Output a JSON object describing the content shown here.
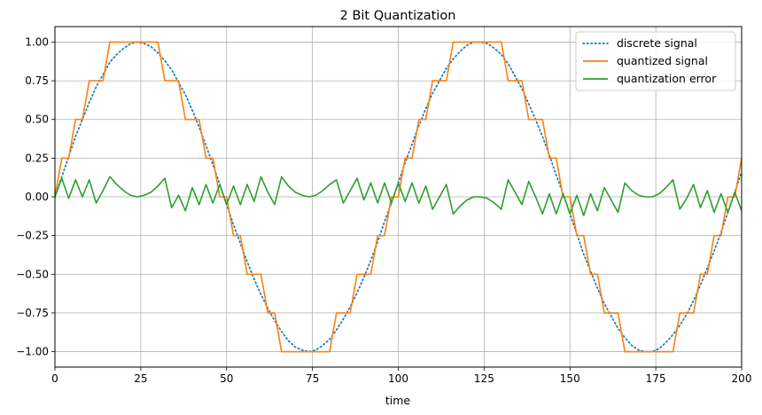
{
  "chart_data": {
    "type": "line",
    "title": "2 Bit Quantization",
    "xlabel": "time",
    "ylabel": "",
    "xlim": [
      0,
      200
    ],
    "ylim": [
      -1.1,
      1.1
    ],
    "xticks": [
      0,
      25,
      50,
      75,
      100,
      125,
      150,
      175,
      200
    ],
    "xtick_labels": [
      "0",
      "25",
      "50",
      "75",
      "100",
      "125",
      "150",
      "175",
      "200"
    ],
    "yticks": [
      -1.0,
      -0.75,
      -0.5,
      -0.25,
      0.0,
      0.25,
      0.5,
      0.75,
      1.0
    ],
    "ytick_labels": [
      "−1.00",
      "−0.75",
      "−0.50",
      "−0.25",
      "0.00",
      "0.25",
      "0.50",
      "0.75",
      "1.00"
    ],
    "grid": true,
    "legend_position": "top-right",
    "x": [
      0,
      2,
      4,
      6,
      8,
      10,
      12,
      14,
      16,
      18,
      20,
      22,
      24,
      26,
      28,
      30,
      32,
      34,
      36,
      38,
      40,
      42,
      44,
      46,
      48,
      50,
      52,
      54,
      56,
      58,
      60,
      62,
      64,
      66,
      68,
      70,
      72,
      74,
      76,
      78,
      80,
      82,
      84,
      86,
      88,
      90,
      92,
      94,
      96,
      98,
      100,
      102,
      104,
      106,
      108,
      110,
      112,
      114,
      116,
      118,
      120,
      122,
      124,
      126,
      128,
      130,
      132,
      134,
      136,
      138,
      140,
      142,
      144,
      146,
      148,
      150,
      152,
      154,
      156,
      158,
      160,
      162,
      164,
      166,
      168,
      170,
      172,
      174,
      176,
      178,
      180,
      182,
      184,
      186,
      188,
      190,
      192,
      194,
      196,
      198,
      200
    ],
    "series": [
      {
        "name": "discrete signal",
        "color": "#1f77b4",
        "style": "dotted",
        "values": [
          0.0,
          0.13,
          0.26,
          0.39,
          0.5,
          0.61,
          0.71,
          0.79,
          0.87,
          0.92,
          0.96,
          0.99,
          1.0,
          0.99,
          0.97,
          0.93,
          0.88,
          0.82,
          0.74,
          0.66,
          0.56,
          0.45,
          0.33,
          0.21,
          0.08,
          -0.05,
          -0.18,
          -0.3,
          -0.42,
          -0.53,
          -0.63,
          -0.72,
          -0.8,
          -0.87,
          -0.93,
          -0.97,
          -0.99,
          -1.0,
          -0.99,
          -0.96,
          -0.92,
          -0.86,
          -0.79,
          -0.71,
          -0.62,
          -0.52,
          -0.41,
          -0.29,
          -0.16,
          -0.04,
          0.09,
          0.22,
          0.34,
          0.46,
          0.57,
          0.67,
          0.75,
          0.83,
          0.89,
          0.94,
          0.98,
          1.0,
          1.0,
          0.99,
          0.96,
          0.92,
          0.86,
          0.78,
          0.7,
          0.6,
          0.5,
          0.39,
          0.27,
          0.14,
          0.02,
          -0.11,
          -0.24,
          -0.37,
          -0.48,
          -0.59,
          -0.69,
          -0.77,
          -0.85,
          -0.91,
          -0.96,
          -0.99,
          -1.0,
          -1.0,
          -0.98,
          -0.94,
          -0.89,
          -0.83,
          -0.76,
          -0.67,
          -0.57,
          -0.46,
          -0.35,
          -0.23,
          -0.1,
          0.03,
          0.16
        ]
      },
      {
        "name": "quantized signal",
        "color": "#ff7f0e",
        "style": "solid",
        "values": [
          0.0,
          0.25,
          0.25,
          0.5,
          0.5,
          0.75,
          0.75,
          0.75,
          1.0,
          1.0,
          1.0,
          1.0,
          1.0,
          1.0,
          1.0,
          1.0,
          0.75,
          0.75,
          0.75,
          0.5,
          0.5,
          0.5,
          0.25,
          0.25,
          0.0,
          0.0,
          -0.25,
          -0.25,
          -0.5,
          -0.5,
          -0.5,
          -0.75,
          -0.75,
          -1.0,
          -1.0,
          -1.0,
          -1.0,
          -1.0,
          -1.0,
          -1.0,
          -1.0,
          -0.75,
          -0.75,
          -0.75,
          -0.5,
          -0.5,
          -0.5,
          -0.25,
          -0.25,
          0.0,
          0.0,
          0.25,
          0.25,
          0.5,
          0.5,
          0.75,
          0.75,
          0.75,
          1.0,
          1.0,
          1.0,
          1.0,
          1.0,
          1.0,
          1.0,
          1.0,
          0.75,
          0.75,
          0.75,
          0.5,
          0.5,
          0.5,
          0.25,
          0.25,
          0.0,
          0.0,
          -0.25,
          -0.25,
          -0.5,
          -0.5,
          -0.75,
          -0.75,
          -0.75,
          -1.0,
          -1.0,
          -1.0,
          -1.0,
          -1.0,
          -1.0,
          -1.0,
          -1.0,
          -0.75,
          -0.75,
          -0.75,
          -0.5,
          -0.5,
          -0.25,
          -0.25,
          0.0,
          0.0,
          0.25
        ]
      },
      {
        "name": "quantization error",
        "color": "#2ca02c",
        "style": "solid",
        "values": [
          0.0,
          0.12,
          -0.01,
          0.11,
          0.0,
          0.11,
          -0.04,
          0.04,
          0.13,
          0.08,
          0.04,
          0.01,
          0.0,
          0.01,
          0.03,
          0.07,
          0.12,
          -0.07,
          0.01,
          -0.09,
          0.06,
          -0.05,
          0.08,
          -0.04,
          0.08,
          -0.05,
          0.07,
          -0.05,
          0.08,
          -0.03,
          0.13,
          0.03,
          -0.05,
          0.13,
          0.07,
          0.03,
          0.01,
          0.0,
          0.01,
          0.04,
          0.08,
          0.11,
          -0.04,
          0.04,
          0.12,
          -0.02,
          0.09,
          -0.04,
          0.09,
          -0.04,
          0.09,
          -0.03,
          0.09,
          -0.04,
          0.07,
          -0.08,
          0.0,
          0.08,
          -0.11,
          -0.06,
          -0.02,
          0.0,
          0.0,
          -0.01,
          -0.04,
          -0.08,
          0.11,
          0.03,
          -0.05,
          0.1,
          0.0,
          -0.11,
          0.02,
          -0.11,
          0.02,
          -0.11,
          0.01,
          -0.12,
          0.02,
          -0.09,
          0.06,
          -0.02,
          -0.1,
          0.09,
          0.04,
          0.01,
          0.0,
          0.0,
          0.02,
          0.06,
          0.11,
          -0.08,
          -0.01,
          0.08,
          -0.07,
          0.04,
          -0.1,
          0.02,
          -0.1,
          0.03,
          -0.09
        ]
      }
    ]
  }
}
